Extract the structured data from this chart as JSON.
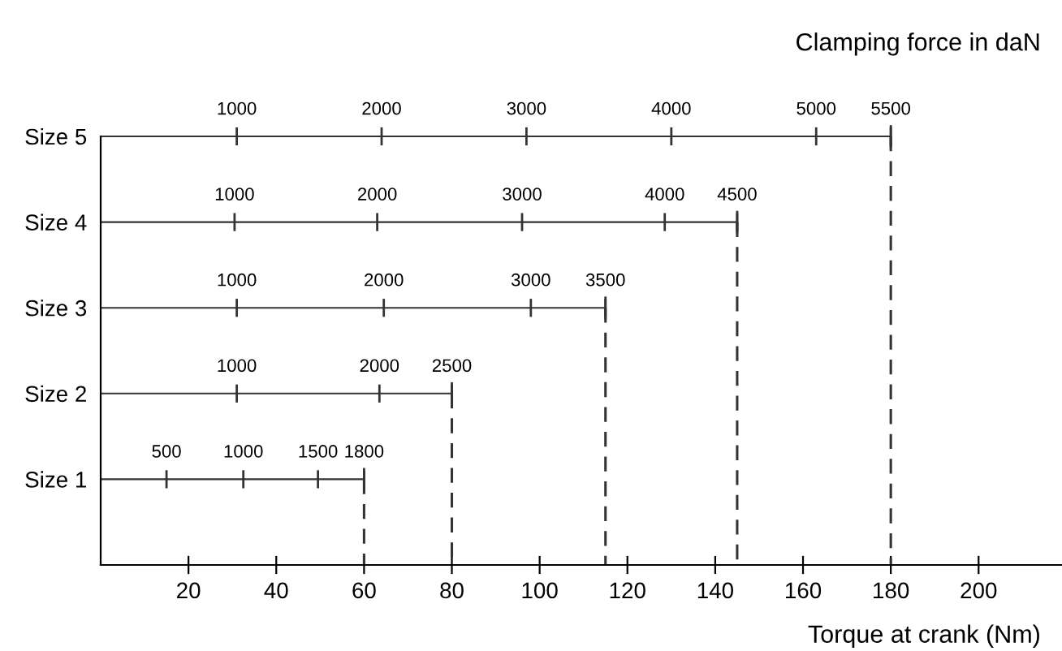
{
  "chart_data": {
    "type": "bar",
    "orientation": "horizontal",
    "title": "Clamping force in daN",
    "xlabel": "Torque at crank (Nm)",
    "categories": [
      "Size 5",
      "Size 4",
      "Size 3",
      "Size 2",
      "Size 1"
    ],
    "values": [
      180,
      145,
      115,
      80,
      60
    ],
    "color": "#333333",
    "xlim": [
      0,
      219
    ],
    "xticks": [
      20,
      40,
      60,
      80,
      100,
      120,
      140,
      160,
      180,
      200
    ],
    "annotations": [
      {
        "text": "1000",
        "x": 31,
        "y": "Size 5"
      },
      {
        "text": "2000",
        "x": 64,
        "y": "Size 5"
      },
      {
        "text": "3000",
        "x": 97,
        "y": "Size 5"
      },
      {
        "text": "4000",
        "x": 130,
        "y": "Size 5"
      },
      {
        "text": "5000",
        "x": 163,
        "y": "Size 5"
      },
      {
        "text": "5500",
        "x": 180,
        "y": "Size 5"
      },
      {
        "text": "1000",
        "x": 30.5,
        "y": "Size 4"
      },
      {
        "text": "2000",
        "x": 63,
        "y": "Size 4"
      },
      {
        "text": "3000",
        "x": 96,
        "y": "Size 4"
      },
      {
        "text": "4000",
        "x": 128.5,
        "y": "Size 4"
      },
      {
        "text": "4500",
        "x": 145,
        "y": "Size 4"
      },
      {
        "text": "1000",
        "x": 31,
        "y": "Size 3"
      },
      {
        "text": "2000",
        "x": 64.5,
        "y": "Size 3"
      },
      {
        "text": "3000",
        "x": 98,
        "y": "Size 3"
      },
      {
        "text": "3500",
        "x": 115,
        "y": "Size 3"
      },
      {
        "text": "1000",
        "x": 31,
        "y": "Size 2"
      },
      {
        "text": "2000",
        "x": 63.5,
        "y": "Size 2"
      },
      {
        "text": "2500",
        "x": 80,
        "y": "Size 2"
      },
      {
        "text": "500",
        "x": 15,
        "y": "Size 1"
      },
      {
        "text": "1000",
        "x": 32.5,
        "y": "Size 1"
      },
      {
        "text": "1500",
        "x": 49.5,
        "y": "Size 1"
      },
      {
        "text": "1800",
        "x": 60,
        "y": "Size 1"
      }
    ]
  }
}
